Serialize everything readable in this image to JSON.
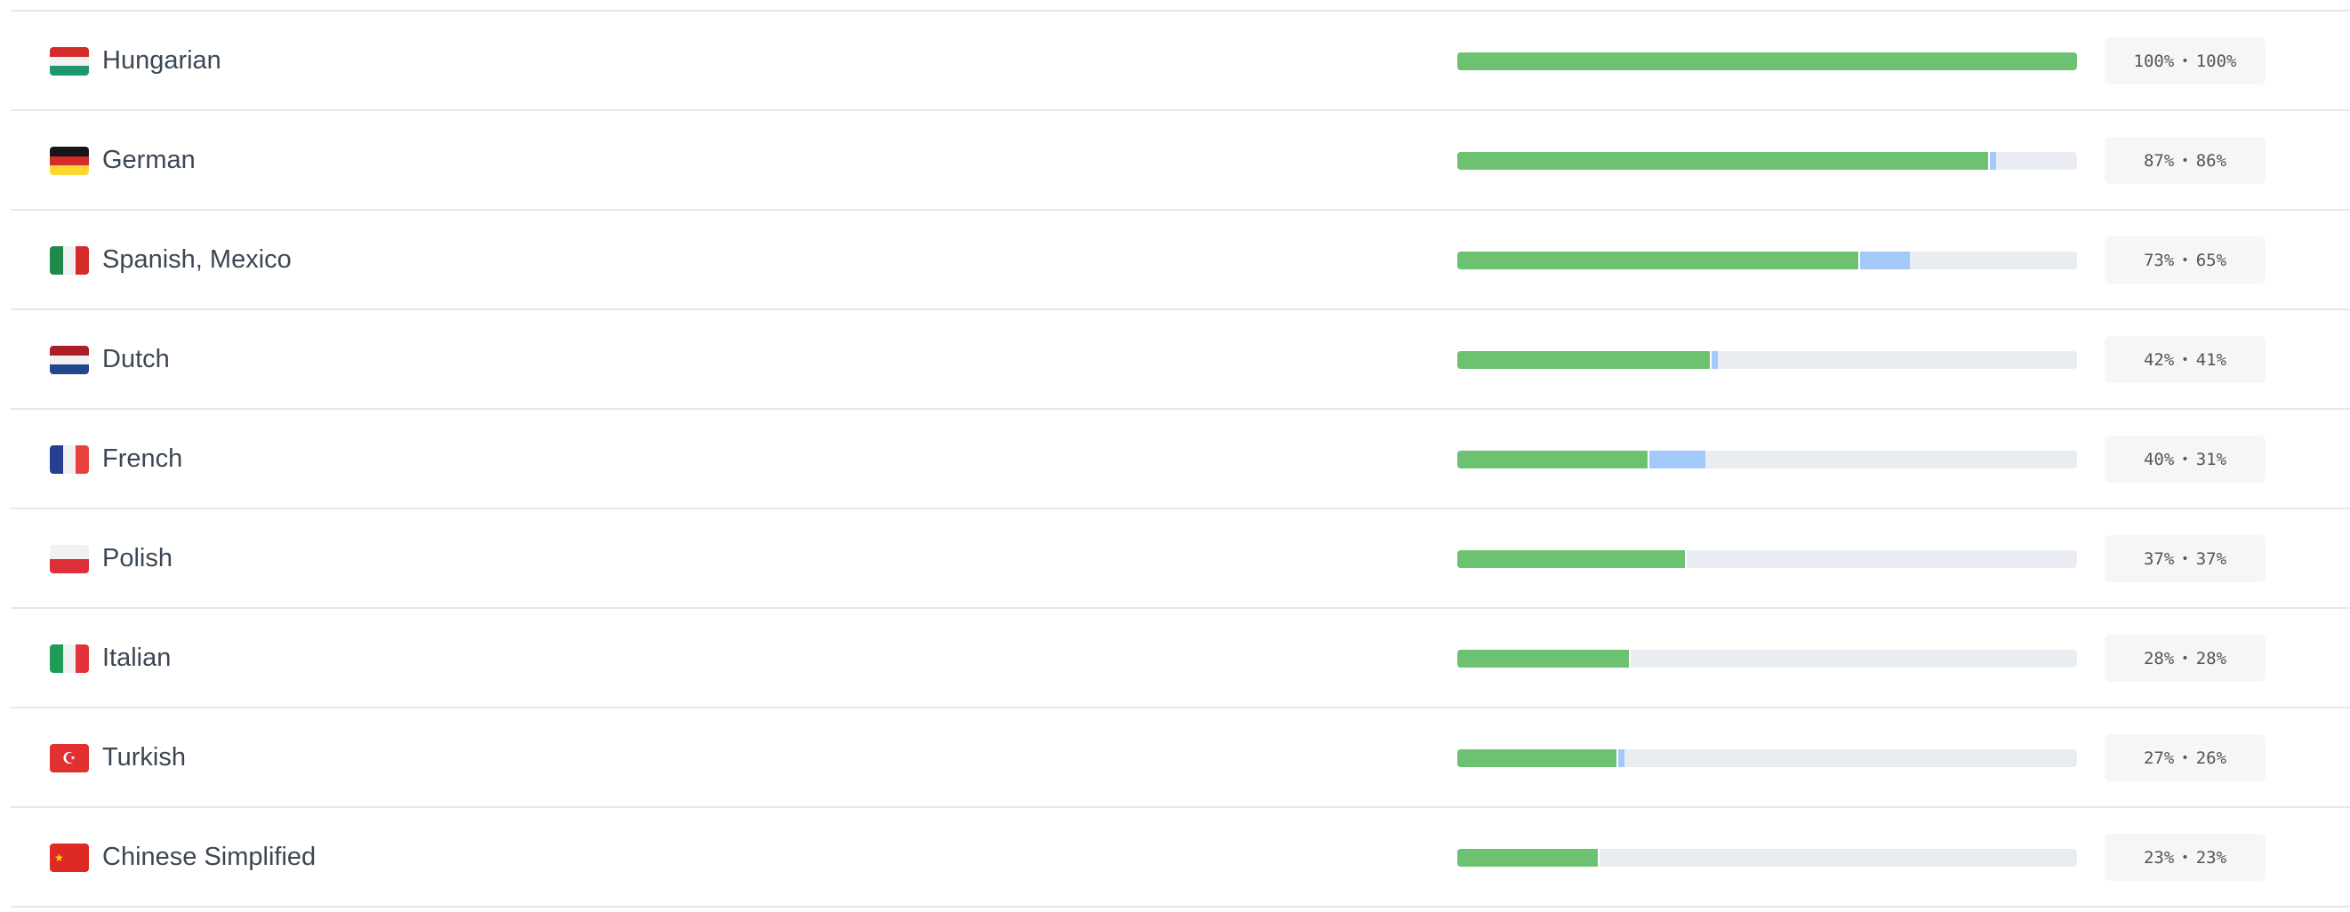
{
  "colors": {
    "approved": "#6cc270",
    "translated": "#a3c8fa",
    "track": "#e9edf1"
  },
  "languages": [
    {
      "name": "Hungarian",
      "flag": "hungary-flag-icon",
      "translated": 100,
      "approved": 100,
      "translated_label": "100%",
      "approved_label": "100%"
    },
    {
      "name": "German",
      "flag": "germany-flag-icon",
      "translated": 87,
      "approved": 86,
      "translated_label": "87%",
      "approved_label": "86%"
    },
    {
      "name": "Spanish, Mexico",
      "flag": "mexico-flag-icon",
      "translated": 73,
      "approved": 65,
      "translated_label": "73%",
      "approved_label": "65%"
    },
    {
      "name": "Dutch",
      "flag": "netherlands-flag-icon",
      "translated": 42,
      "approved": 41,
      "translated_label": "42%",
      "approved_label": "41%"
    },
    {
      "name": "French",
      "flag": "france-flag-icon",
      "translated": 40,
      "approved": 31,
      "translated_label": "40%",
      "approved_label": "31%"
    },
    {
      "name": "Polish",
      "flag": "poland-flag-icon",
      "translated": 37,
      "approved": 37,
      "translated_label": "37%",
      "approved_label": "37%"
    },
    {
      "name": "Italian",
      "flag": "italy-flag-icon",
      "translated": 28,
      "approved": 28,
      "translated_label": "28%",
      "approved_label": "28%"
    },
    {
      "name": "Turkish",
      "flag": "turkey-flag-icon",
      "translated": 27,
      "approved": 26,
      "translated_label": "27%",
      "approved_label": "26%"
    },
    {
      "name": "Chinese Simplified",
      "flag": "china-flag-icon",
      "translated": 23,
      "approved": 23,
      "translated_label": "23%",
      "approved_label": "23%"
    }
  ],
  "separator": "•"
}
